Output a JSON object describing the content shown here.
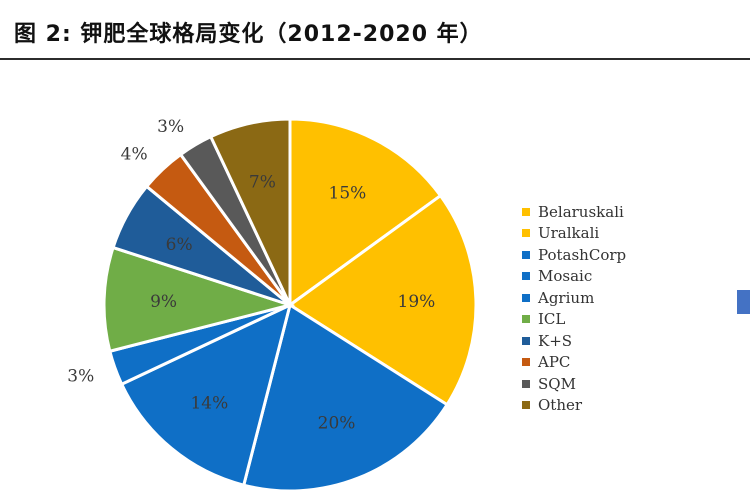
{
  "page": {
    "title": "图  2:  钾肥全球格局变化（2012-2020 年）"
  },
  "chart_data": {
    "type": "pie",
    "categories": [
      "Belaruskali",
      "Uralkali",
      "PotashCorp",
      "Mosaic",
      "Agrium",
      "ICL",
      "K+S",
      "APC",
      "SQM",
      "Other"
    ],
    "values": [
      15,
      19,
      20,
      14,
      3,
      9,
      6,
      4,
      3,
      7
    ],
    "labels": [
      "15%",
      "19%",
      "20%",
      "14%",
      "3%",
      "9%",
      "6%",
      "4%",
      "3%",
      "7%"
    ],
    "colors": [
      "#FFC000",
      "#FFC000",
      "#0F6FC6",
      "#0F6FC6",
      "#0F6FC6",
      "#70AD47",
      "#1F5C99",
      "#C55A11",
      "#595959",
      "#8B6914"
    ],
    "legend_position": "right"
  }
}
